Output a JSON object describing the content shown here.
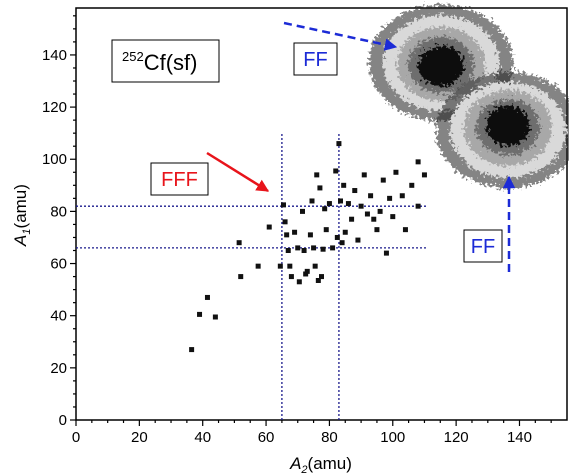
{
  "chart_data": {
    "type": "scatter",
    "title": "",
    "xlabel": {
      "main": "A",
      "sub": "2",
      "unit": "(amu)"
    },
    "ylabel": {
      "main": "A",
      "sub": "1",
      "unit": "(amu)"
    },
    "xlim": [
      0,
      155
    ],
    "ylim": [
      0,
      158
    ],
    "x_ticks": [
      0,
      20,
      40,
      60,
      80,
      100,
      120,
      140
    ],
    "y_ticks": [
      0,
      20,
      40,
      60,
      80,
      100,
      120,
      140
    ],
    "grid": false,
    "legend": "none",
    "reaction_label": {
      "sup": "252",
      "text": "Cf(sf)"
    },
    "annotations": {
      "fff": {
        "label": "FFF",
        "color": "#e8141b"
      },
      "ff_top": {
        "label": "FF",
        "color": "#1c2bd6"
      },
      "ff_right": {
        "label": "FF",
        "color": "#1c2bd6"
      }
    },
    "guide_lines": {
      "h": [
        82,
        66
      ],
      "v": [
        65,
        83
      ],
      "color": "#1a1a8c"
    },
    "ff_peaks": [
      {
        "x": 102,
        "y": 143,
        "note": "dense binary-fission island"
      },
      {
        "x": 132,
        "y": 113,
        "note": "dense binary-fission island"
      }
    ],
    "points": [
      [
        36.5,
        27
      ],
      [
        39,
        40.5
      ],
      [
        41.5,
        47
      ],
      [
        44,
        39.5
      ],
      [
        51.5,
        68
      ],
      [
        52,
        55
      ],
      [
        57.5,
        59
      ],
      [
        61,
        74
      ],
      [
        64.5,
        59
      ],
      [
        65.5,
        82.5
      ],
      [
        66,
        76
      ],
      [
        66.5,
        71
      ],
      [
        67,
        65
      ],
      [
        67.5,
        59
      ],
      [
        68,
        55
      ],
      [
        69,
        72
      ],
      [
        70,
        66
      ],
      [
        70.5,
        53
      ],
      [
        71.5,
        80
      ],
      [
        72,
        65
      ],
      [
        72.5,
        56
      ],
      [
        73,
        57
      ],
      [
        74,
        71
      ],
      [
        74.5,
        84
      ],
      [
        75,
        66
      ],
      [
        75.5,
        59
      ],
      [
        76,
        94
      ],
      [
        76.5,
        53.5
      ],
      [
        77,
        89
      ],
      [
        77.5,
        55
      ],
      [
        78,
        65.5
      ],
      [
        78.5,
        81
      ],
      [
        79,
        73
      ],
      [
        80,
        83
      ],
      [
        81,
        66
      ],
      [
        82,
        95.5
      ],
      [
        82.5,
        70
      ],
      [
        83,
        106
      ],
      [
        83.5,
        84
      ],
      [
        84,
        68
      ],
      [
        84.5,
        90
      ],
      [
        85,
        72
      ],
      [
        86,
        83
      ],
      [
        87,
        77
      ],
      [
        88,
        88
      ],
      [
        89,
        69
      ],
      [
        90,
        82
      ],
      [
        91,
        94
      ],
      [
        92,
        79
      ],
      [
        93,
        86
      ],
      [
        94,
        77
      ],
      [
        95,
        73
      ],
      [
        96,
        80
      ],
      [
        97,
        92
      ],
      [
        98,
        64
      ],
      [
        99,
        85
      ],
      [
        100,
        78
      ],
      [
        101,
        95
      ],
      [
        103,
        86
      ],
      [
        104,
        73
      ],
      [
        106,
        90
      ],
      [
        108,
        82
      ],
      [
        108,
        99
      ],
      [
        110,
        94
      ]
    ]
  }
}
